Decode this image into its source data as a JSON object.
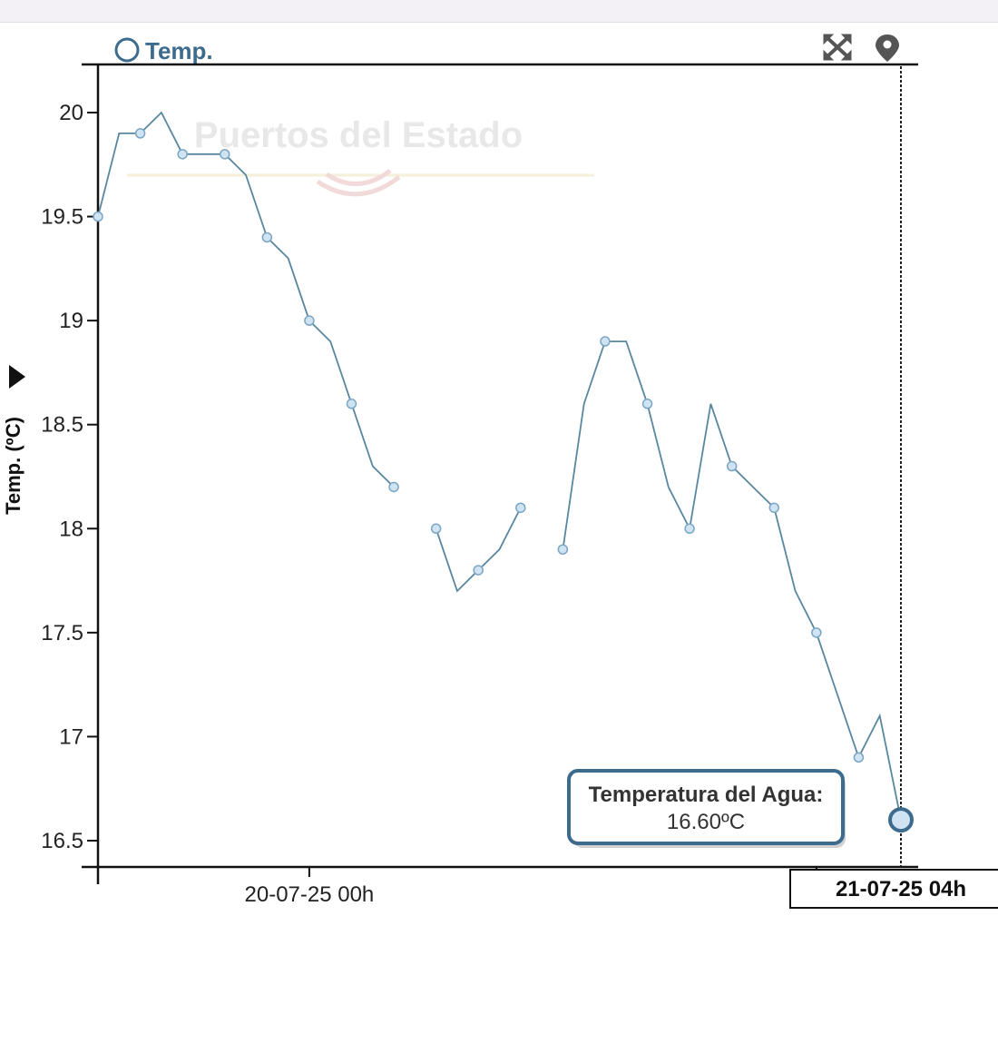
{
  "watermark": "Puertos del Estado",
  "legend": {
    "label": "Temp."
  },
  "toolbar": {
    "expand_icon": "expand-arrows-icon",
    "location_icon": "map-pin-icon"
  },
  "tooltip": {
    "title": "Temperatura del Agua:",
    "value": "16.60ºC"
  },
  "cursor_label": "21-07-25 04h",
  "colors": {
    "line": "#5a87a0",
    "marker_fill": "#cfe3f3",
    "marker_stroke": "#7aa6c4",
    "accent": "#3d6b8e"
  },
  "chart_data": {
    "type": "line",
    "ylabel": "Temp. (ºC)",
    "ylim": [
      16.4,
      20.2
    ],
    "yticks": [
      20,
      19.5,
      19,
      18.5,
      18,
      17.5,
      17,
      16.5
    ],
    "ytick_labels": [
      "20",
      "19.5",
      "19",
      "18.5",
      "18",
      "17.5",
      "17",
      "16.5"
    ],
    "xlim": [
      -10,
      28
    ],
    "xticks": [
      0,
      24
    ],
    "xtick_labels": [
      "20-07-25 00h",
      "21-0"
    ],
    "x_unit": "hours since 20-07-25 00h",
    "series": [
      {
        "values": [
          {
            "x": -10,
            "y": 19.5,
            "m": true
          },
          {
            "x": -9,
            "y": 19.9
          },
          {
            "x": -8,
            "y": 19.9,
            "m": true
          },
          {
            "x": -7,
            "y": 20.0
          },
          {
            "x": -6,
            "y": 19.8,
            "m": true
          },
          {
            "x": -5,
            "y": 19.8
          },
          {
            "x": -4,
            "y": 19.8,
            "m": true
          },
          {
            "x": -3,
            "y": 19.7
          },
          {
            "x": -2,
            "y": 19.4,
            "m": true
          },
          {
            "x": -1,
            "y": 19.3
          },
          {
            "x": 0,
            "y": 19.0,
            "m": true
          },
          {
            "x": 1,
            "y": 18.9
          },
          {
            "x": 2,
            "y": 18.6,
            "m": true
          },
          {
            "x": 3,
            "y": 18.3
          },
          {
            "x": 4,
            "y": 18.2,
            "m": true
          },
          {
            "x": 5,
            "y": null
          },
          {
            "x": 6,
            "y": 18.0,
            "m": true
          },
          {
            "x": 7,
            "y": 17.7
          },
          {
            "x": 8,
            "y": 17.8,
            "m": true
          },
          {
            "x": 9,
            "y": 17.9
          },
          {
            "x": 10,
            "y": 18.1,
            "m": true
          },
          {
            "x": 11,
            "y": null
          },
          {
            "x": 12,
            "y": 17.9,
            "m": true
          },
          {
            "x": 13,
            "y": 18.6
          },
          {
            "x": 14,
            "y": 18.9,
            "m": true
          },
          {
            "x": 15,
            "y": 18.9
          },
          {
            "x": 16,
            "y": 18.6,
            "m": true
          },
          {
            "x": 17,
            "y": 18.2
          },
          {
            "x": 18,
            "y": 18.0,
            "m": true
          },
          {
            "x": 19,
            "y": 18.6
          },
          {
            "x": 20,
            "y": 18.3,
            "m": true
          },
          {
            "x": 21,
            "y": 18.2
          },
          {
            "x": 22,
            "y": 18.1,
            "m": true
          },
          {
            "x": 23,
            "y": 17.7
          },
          {
            "x": 24,
            "y": 17.5,
            "m": true
          },
          {
            "x": 25,
            "y": 17.2
          },
          {
            "x": 26,
            "y": 16.9,
            "m": true
          },
          {
            "x": 27,
            "y": 17.1
          },
          {
            "x": 28,
            "y": 16.6,
            "m": true
          }
        ]
      }
    ]
  }
}
